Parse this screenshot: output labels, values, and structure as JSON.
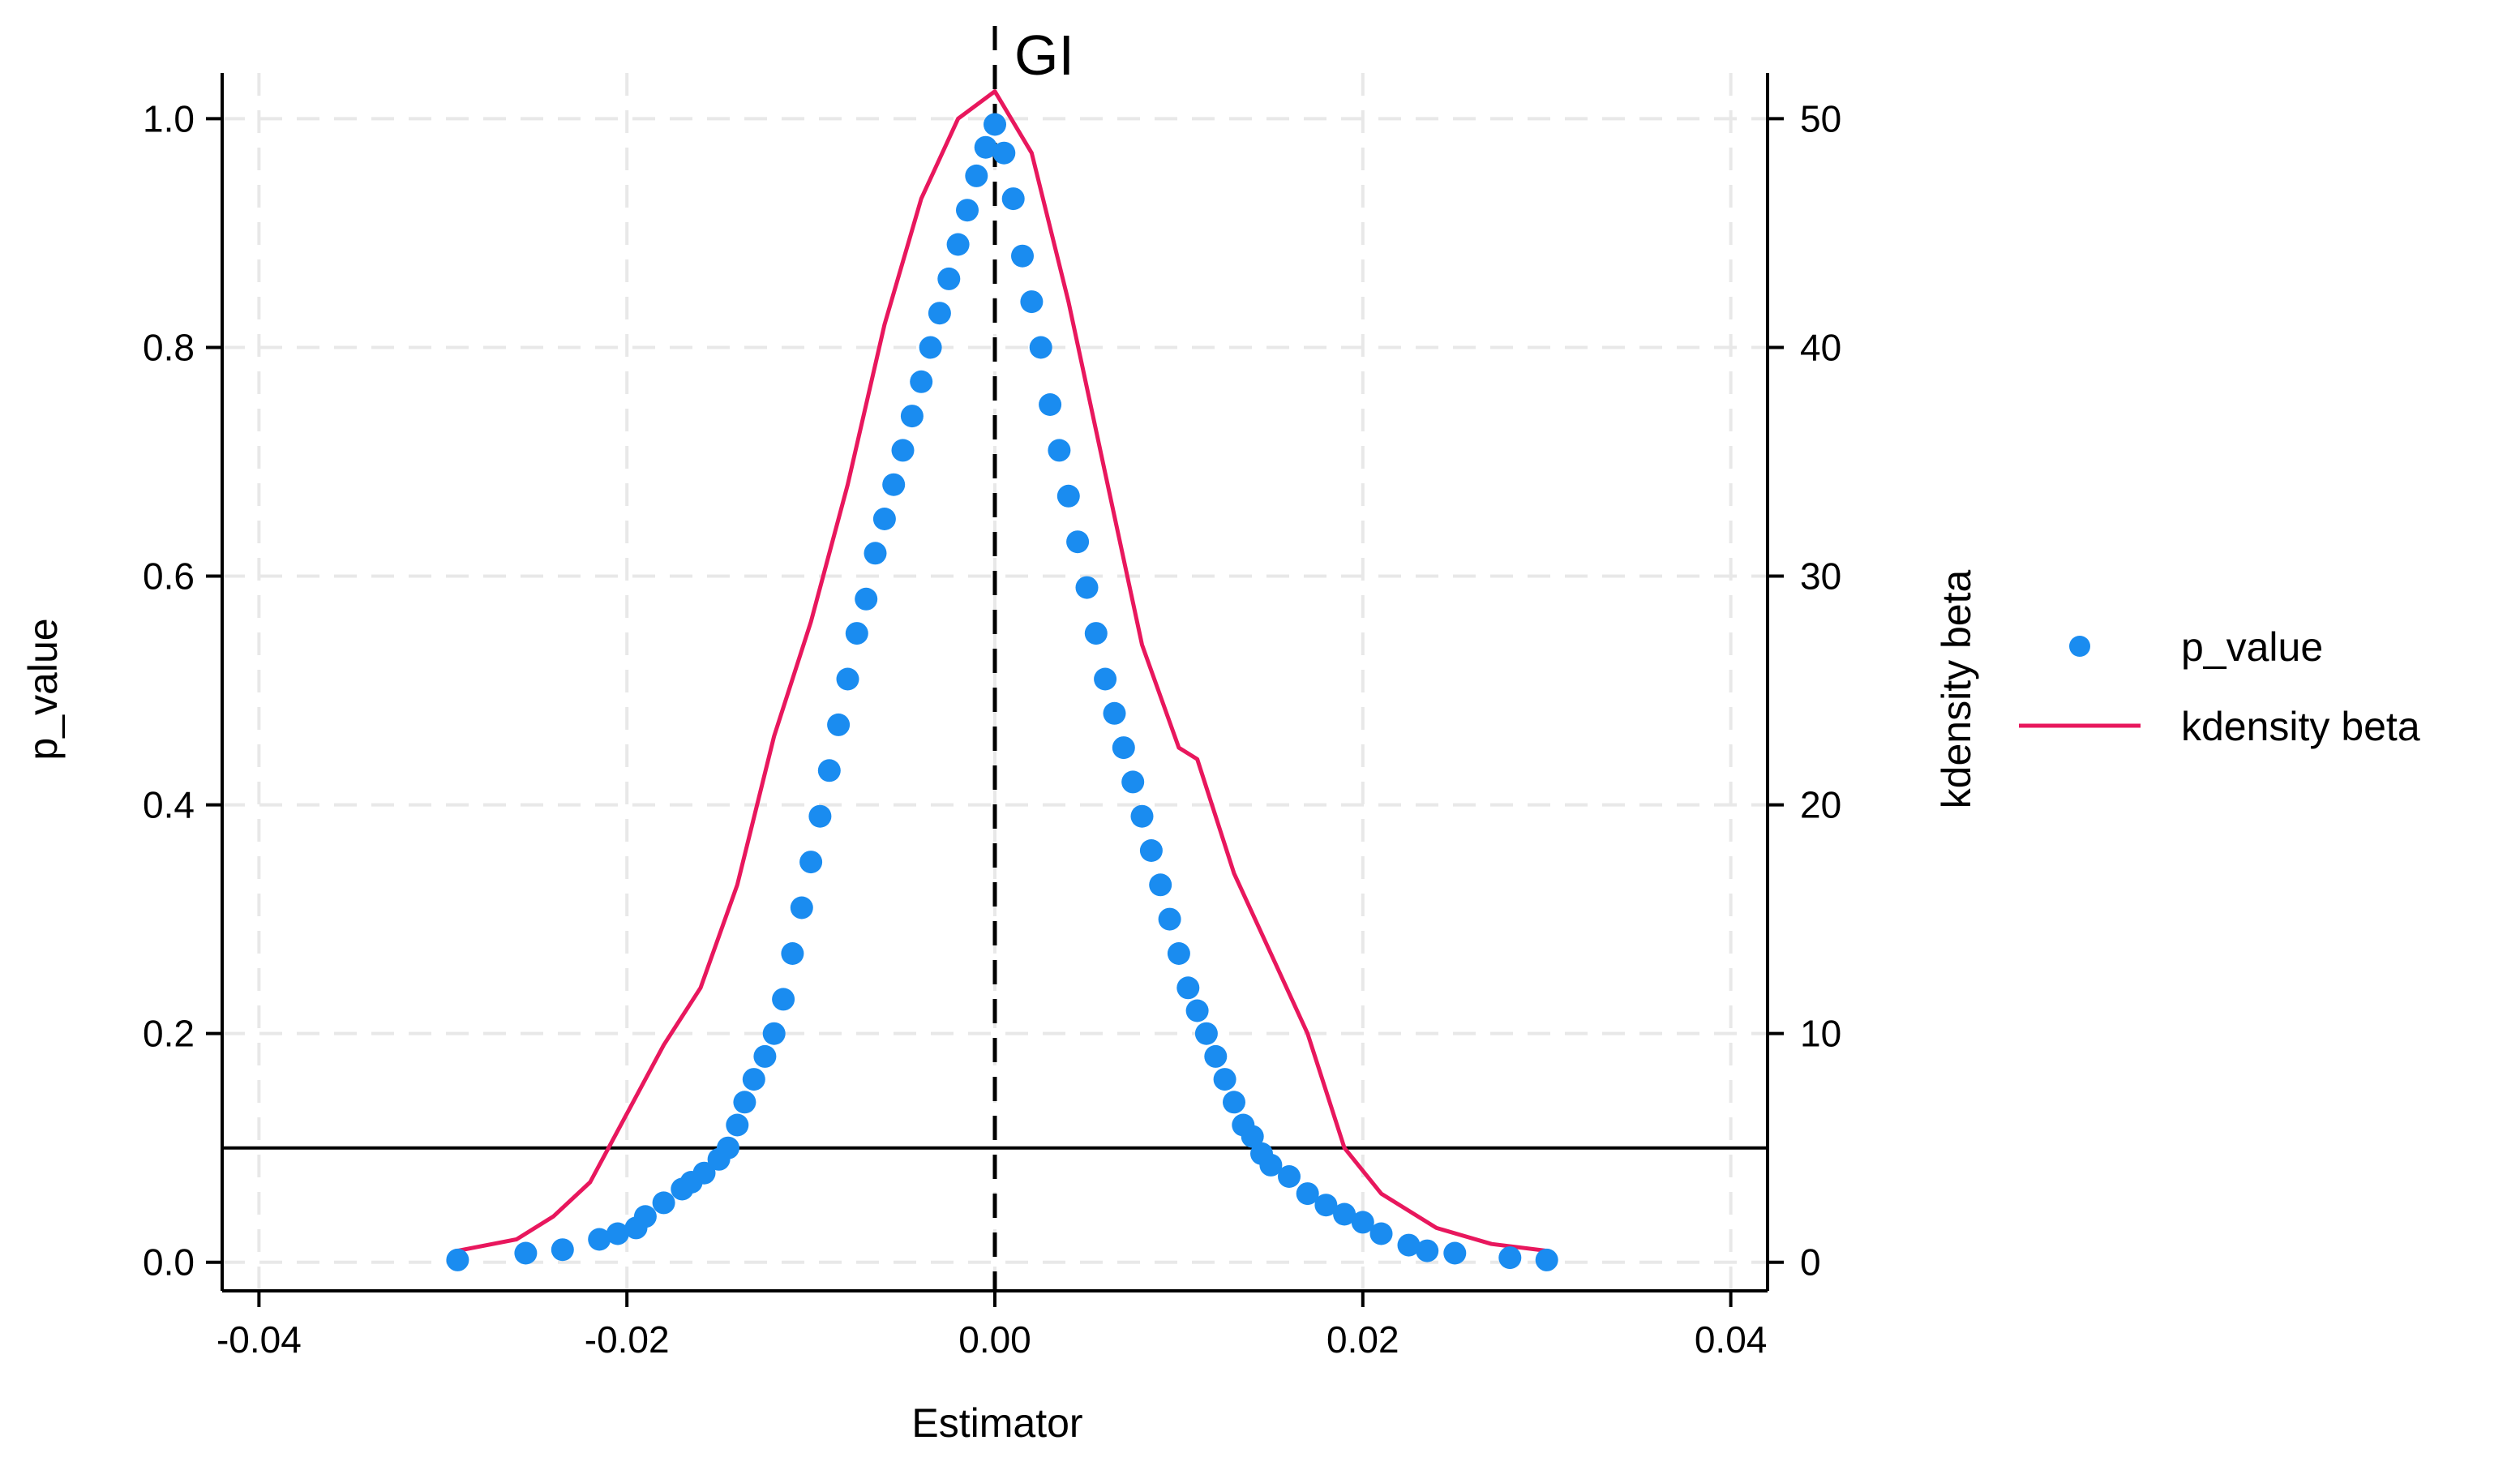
{
  "chart_data": {
    "type": "scatter",
    "title": "GI",
    "xlabel": "Estimator",
    "ylabel_left": "p_value",
    "ylabel_right": "kdensity beta",
    "xlim": [
      -0.042,
      0.042
    ],
    "ylim_left": [
      -0.025,
      1.04
    ],
    "ylim_right": [
      -1.25,
      52.0
    ],
    "x_ticks": [
      -0.04,
      -0.02,
      0.0,
      0.02,
      0.04
    ],
    "x_tick_labels": [
      "-0.04",
      "-0.02",
      "0.00",
      "0.02",
      "0.04"
    ],
    "y_left_ticks": [
      0.0,
      0.2,
      0.4,
      0.6,
      0.8,
      1.0
    ],
    "y_left_tick_labels": [
      "0.0",
      "0.2",
      "0.4",
      "0.6",
      "0.8",
      "1.0"
    ],
    "y_right_ticks": [
      0,
      10,
      20,
      30,
      40,
      50
    ],
    "y_right_tick_labels": [
      "0",
      "10",
      "20",
      "30",
      "40",
      "50"
    ],
    "grid": true,
    "reference_lines": {
      "vertical_x": 0.0,
      "horizontal_p": 0.1
    },
    "legend_position": "right",
    "series": [
      {
        "name": "p_value",
        "type": "scatter",
        "axis": "left",
        "color": "#1a8cf0",
        "points": [
          [
            -0.0292,
            0.002
          ],
          [
            -0.0255,
            0.008
          ],
          [
            -0.0235,
            0.011
          ],
          [
            -0.0215,
            0.02
          ],
          [
            -0.0205,
            0.025
          ],
          [
            -0.0195,
            0.03
          ],
          [
            -0.019,
            0.04
          ],
          [
            -0.018,
            0.052
          ],
          [
            -0.017,
            0.064
          ],
          [
            -0.0165,
            0.07
          ],
          [
            -0.0158,
            0.078
          ],
          [
            -0.015,
            0.09
          ],
          [
            -0.0145,
            0.1
          ],
          [
            -0.014,
            0.12
          ],
          [
            -0.0136,
            0.14
          ],
          [
            -0.0131,
            0.16
          ],
          [
            -0.0125,
            0.18
          ],
          [
            -0.012,
            0.2
          ],
          [
            -0.0115,
            0.23
          ],
          [
            -0.011,
            0.27
          ],
          [
            -0.0105,
            0.31
          ],
          [
            -0.01,
            0.35
          ],
          [
            -0.0095,
            0.39
          ],
          [
            -0.009,
            0.43
          ],
          [
            -0.0085,
            0.47
          ],
          [
            -0.008,
            0.51
          ],
          [
            -0.0075,
            0.55
          ],
          [
            -0.007,
            0.58
          ],
          [
            -0.0065,
            0.62
          ],
          [
            -0.006,
            0.65
          ],
          [
            -0.0055,
            0.68
          ],
          [
            -0.005,
            0.71
          ],
          [
            -0.0045,
            0.74
          ],
          [
            -0.004,
            0.77
          ],
          [
            -0.0035,
            0.8
          ],
          [
            -0.003,
            0.83
          ],
          [
            -0.0025,
            0.86
          ],
          [
            -0.002,
            0.89
          ],
          [
            -0.0015,
            0.92
          ],
          [
            -0.001,
            0.95
          ],
          [
            -0.0005,
            0.975
          ],
          [
            0.0,
            0.995
          ],
          [
            0.0005,
            0.97
          ],
          [
            0.001,
            0.93
          ],
          [
            0.0015,
            0.88
          ],
          [
            0.002,
            0.84
          ],
          [
            0.0025,
            0.8
          ],
          [
            0.003,
            0.75
          ],
          [
            0.0035,
            0.71
          ],
          [
            0.004,
            0.67
          ],
          [
            0.0045,
            0.63
          ],
          [
            0.005,
            0.59
          ],
          [
            0.0055,
            0.55
          ],
          [
            0.006,
            0.51
          ],
          [
            0.0065,
            0.48
          ],
          [
            0.007,
            0.45
          ],
          [
            0.0075,
            0.42
          ],
          [
            0.008,
            0.39
          ],
          [
            0.0085,
            0.36
          ],
          [
            0.009,
            0.33
          ],
          [
            0.0095,
            0.3
          ],
          [
            0.01,
            0.27
          ],
          [
            0.0105,
            0.24
          ],
          [
            0.011,
            0.22
          ],
          [
            0.0115,
            0.2
          ],
          [
            0.012,
            0.18
          ],
          [
            0.0125,
            0.16
          ],
          [
            0.013,
            0.14
          ],
          [
            0.0135,
            0.12
          ],
          [
            0.014,
            0.11
          ],
          [
            0.0145,
            0.095
          ],
          [
            0.015,
            0.085
          ],
          [
            0.016,
            0.075
          ],
          [
            0.017,
            0.06
          ],
          [
            0.018,
            0.05
          ],
          [
            0.019,
            0.042
          ],
          [
            0.02,
            0.035
          ],
          [
            0.021,
            0.025
          ],
          [
            0.0225,
            0.015
          ],
          [
            0.0235,
            0.01
          ],
          [
            0.025,
            0.008
          ],
          [
            0.028,
            0.004
          ],
          [
            0.03,
            0.002
          ]
        ]
      },
      {
        "name": "kdensity beta",
        "type": "line",
        "axis": "right",
        "color": "#e8175d",
        "points": [
          [
            -0.0292,
            0.5
          ],
          [
            -0.026,
            1.0
          ],
          [
            -0.024,
            2.0
          ],
          [
            -0.022,
            3.5
          ],
          [
            -0.02,
            6.5
          ],
          [
            -0.018,
            9.5
          ],
          [
            -0.016,
            12.0
          ],
          [
            -0.014,
            16.5
          ],
          [
            -0.012,
            23.0
          ],
          [
            -0.01,
            28.0
          ],
          [
            -0.008,
            34.0
          ],
          [
            -0.006,
            41.0
          ],
          [
            -0.004,
            46.5
          ],
          [
            -0.002,
            50.0
          ],
          [
            0.0,
            51.2
          ],
          [
            0.002,
            48.5
          ],
          [
            0.004,
            42.0
          ],
          [
            0.006,
            34.5
          ],
          [
            0.008,
            27.0
          ],
          [
            0.01,
            22.5
          ],
          [
            0.011,
            22.0
          ],
          [
            0.013,
            17.0
          ],
          [
            0.015,
            13.5
          ],
          [
            0.017,
            10.0
          ],
          [
            0.019,
            5.0
          ],
          [
            0.021,
            3.0
          ],
          [
            0.024,
            1.5
          ],
          [
            0.027,
            0.8
          ],
          [
            0.03,
            0.5
          ]
        ]
      }
    ]
  }
}
